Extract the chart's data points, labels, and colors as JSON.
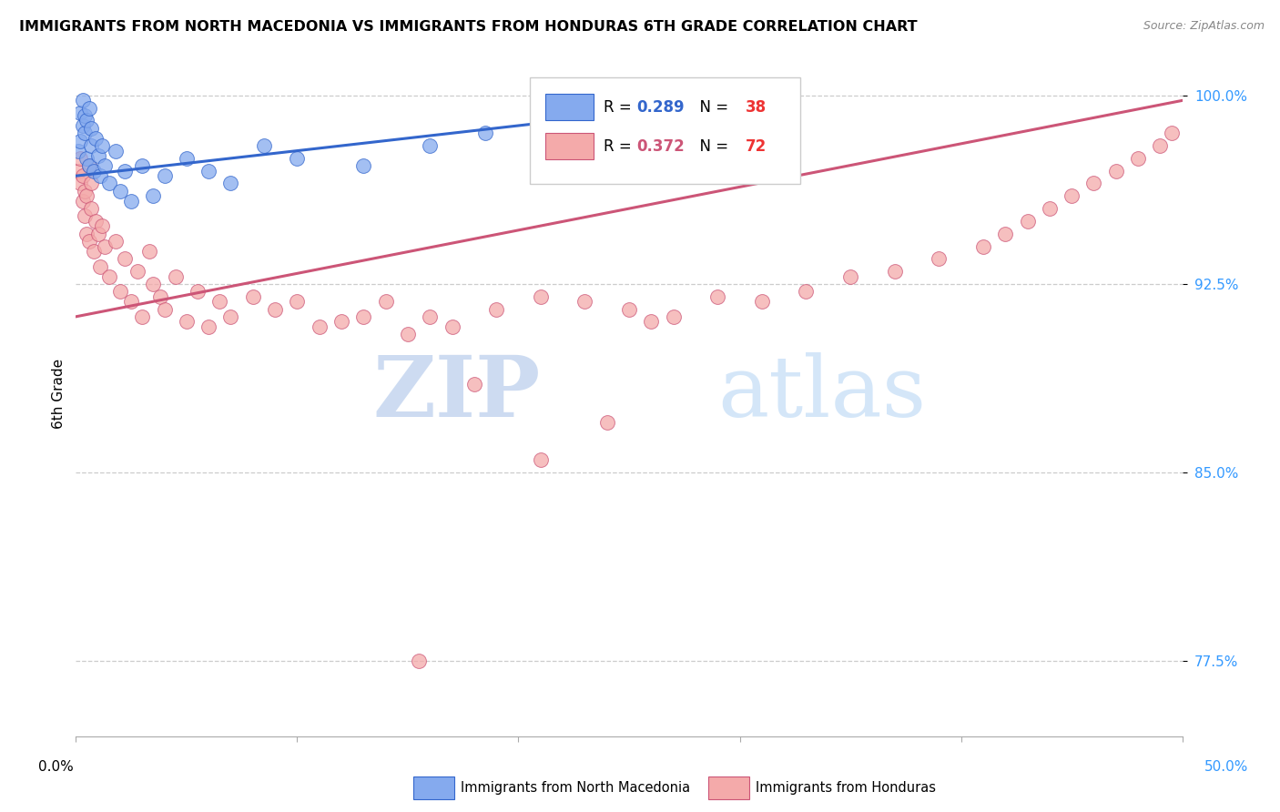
{
  "title": "IMMIGRANTS FROM NORTH MACEDONIA VS IMMIGRANTS FROM HONDURAS 6TH GRADE CORRELATION CHART",
  "source": "Source: ZipAtlas.com",
  "ylabel": "6th Grade",
  "yticks_pct": [
    77.5,
    85.0,
    92.5,
    100.0
  ],
  "ytick_labels": [
    "77.5%",
    "85.0%",
    "92.5%",
    "100.0%"
  ],
  "xlim": [
    0.0,
    0.5
  ],
  "ylim": [
    0.745,
    1.018
  ],
  "legend_blue_r": "0.289",
  "legend_blue_n": "38",
  "legend_pink_r": "0.372",
  "legend_pink_n": "72",
  "legend_label_blue": "Immigrants from North Macedonia",
  "legend_label_pink": "Immigrants from Honduras",
  "blue_scatter_color": "#85AAEE",
  "pink_scatter_color": "#F4AAAA",
  "blue_line_color": "#3366CC",
  "pink_line_color": "#CC5577",
  "blue_scatter_x": [
    0.001,
    0.002,
    0.002,
    0.003,
    0.003,
    0.004,
    0.004,
    0.005,
    0.005,
    0.006,
    0.006,
    0.007,
    0.007,
    0.008,
    0.009,
    0.01,
    0.011,
    0.012,
    0.013,
    0.015,
    0.018,
    0.02,
    0.022,
    0.025,
    0.03,
    0.035,
    0.04,
    0.05,
    0.06,
    0.07,
    0.085,
    0.1,
    0.13,
    0.16,
    0.185,
    0.21,
    0.26,
    0.295
  ],
  "blue_scatter_y": [
    0.978,
    0.982,
    0.993,
    0.988,
    0.998,
    0.985,
    0.992,
    0.975,
    0.99,
    0.972,
    0.995,
    0.98,
    0.987,
    0.97,
    0.983,
    0.976,
    0.968,
    0.98,
    0.972,
    0.965,
    0.978,
    0.962,
    0.97,
    0.958,
    0.972,
    0.96,
    0.968,
    0.975,
    0.97,
    0.965,
    0.98,
    0.975,
    0.972,
    0.98,
    0.985,
    0.988,
    0.992,
    0.998
  ],
  "pink_scatter_x": [
    0.001,
    0.002,
    0.002,
    0.003,
    0.003,
    0.004,
    0.004,
    0.005,
    0.005,
    0.006,
    0.006,
    0.007,
    0.007,
    0.008,
    0.009,
    0.01,
    0.011,
    0.012,
    0.013,
    0.015,
    0.018,
    0.02,
    0.022,
    0.025,
    0.028,
    0.03,
    0.033,
    0.035,
    0.038,
    0.04,
    0.045,
    0.05,
    0.055,
    0.06,
    0.065,
    0.07,
    0.08,
    0.09,
    0.1,
    0.11,
    0.12,
    0.13,
    0.14,
    0.15,
    0.16,
    0.17,
    0.19,
    0.21,
    0.23,
    0.25,
    0.26,
    0.27,
    0.29,
    0.31,
    0.33,
    0.35,
    0.37,
    0.39,
    0.41,
    0.42,
    0.43,
    0.44,
    0.45,
    0.46,
    0.47,
    0.48,
    0.49,
    0.495,
    0.21,
    0.24,
    0.18,
    0.155
  ],
  "pink_scatter_y": [
    0.97,
    0.965,
    0.975,
    0.958,
    0.968,
    0.952,
    0.962,
    0.945,
    0.96,
    0.942,
    0.972,
    0.955,
    0.965,
    0.938,
    0.95,
    0.945,
    0.932,
    0.948,
    0.94,
    0.928,
    0.942,
    0.922,
    0.935,
    0.918,
    0.93,
    0.912,
    0.938,
    0.925,
    0.92,
    0.915,
    0.928,
    0.91,
    0.922,
    0.908,
    0.918,
    0.912,
    0.92,
    0.915,
    0.918,
    0.908,
    0.91,
    0.912,
    0.918,
    0.905,
    0.912,
    0.908,
    0.915,
    0.92,
    0.918,
    0.915,
    0.91,
    0.912,
    0.92,
    0.918,
    0.922,
    0.928,
    0.93,
    0.935,
    0.94,
    0.945,
    0.95,
    0.955,
    0.96,
    0.965,
    0.97,
    0.975,
    0.98,
    0.985,
    0.855,
    0.87,
    0.885,
    0.775
  ]
}
